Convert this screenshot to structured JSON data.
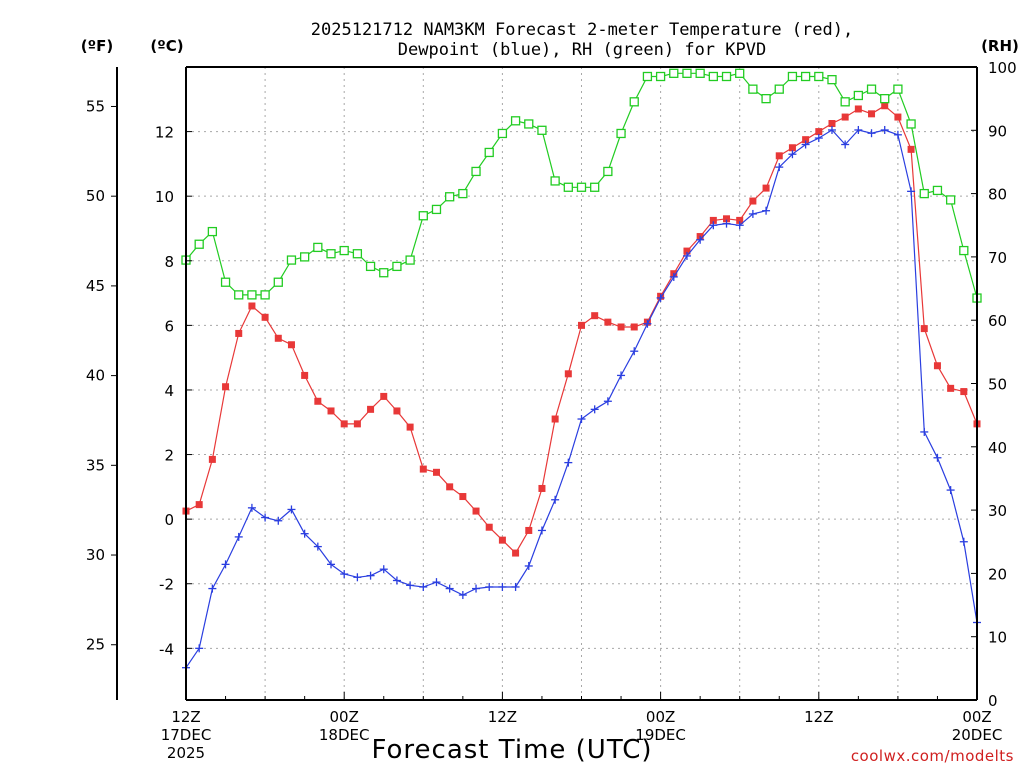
{
  "chart_data": {
    "type": "line",
    "title_line1": "2025121712 NAM3KM Forecast 2-meter Temperature (red),",
    "title_line2": "Dewpoint (blue), RH (green) for KPVD",
    "xlabel": "Forecast Time (UTC)",
    "credit": "coolwx.com/modelts",
    "units": {
      "fahrenheit": "(ºF)",
      "celsius": "(ºC)",
      "rh": "(RH)"
    },
    "x_range_hours": [
      0,
      60
    ],
    "c_range": [
      -5.6,
      14.0
    ],
    "rh_range": [
      0,
      100
    ],
    "f_ticks": [
      "25",
      "30",
      "35",
      "40",
      "45",
      "50",
      "55"
    ],
    "c_ticks": [
      "-4",
      "-2",
      "0",
      "2",
      "4",
      "6",
      "8",
      "10",
      "12"
    ],
    "rh_ticks": [
      "0",
      "10",
      "20",
      "30",
      "40",
      "50",
      "60",
      "70",
      "80",
      "90",
      "100"
    ],
    "x_ticks": [
      {
        "hour": 0,
        "lines": [
          "12Z",
          "17DEC",
          "2025"
        ]
      },
      {
        "hour": 12,
        "lines": [
          "00Z",
          "18DEC"
        ]
      },
      {
        "hour": 24,
        "lines": [
          "12Z"
        ]
      },
      {
        "hour": 36,
        "lines": [
          "00Z",
          "19DEC"
        ]
      },
      {
        "hour": 48,
        "lines": [
          "12Z"
        ]
      },
      {
        "hour": 60,
        "lines": [
          "00Z",
          "20DEC"
        ]
      }
    ],
    "series": [
      {
        "name": "2-meter Temperature",
        "unit": "C",
        "color": "#e83838",
        "marker": "filled-square",
        "values": [
          0.25,
          0.45,
          1.85,
          4.1,
          5.75,
          6.6,
          6.25,
          5.6,
          5.4,
          4.45,
          3.65,
          3.35,
          2.95,
          2.95,
          3.4,
          3.8,
          3.35,
          2.85,
          1.55,
          1.45,
          1.0,
          0.7,
          0.25,
          -0.25,
          -0.65,
          -1.05,
          -0.35,
          0.95,
          3.1,
          4.5,
          6.0,
          6.3,
          6.1,
          5.95,
          5.95,
          6.1,
          6.9,
          7.6,
          8.3,
          8.75,
          9.25,
          9.3,
          9.25,
          9.85,
          10.25,
          11.25,
          11.5,
          11.75,
          12.0,
          12.25,
          12.45,
          12.7,
          12.55,
          12.8,
          12.45,
          11.45,
          5.9,
          4.75,
          4.05,
          3.95,
          2.95
        ]
      },
      {
        "name": "Dewpoint",
        "unit": "C",
        "color": "#2a3ee0",
        "marker": "plus",
        "values": [
          -4.6,
          -4.0,
          -2.15,
          -1.4,
          -0.55,
          0.35,
          0.05,
          -0.05,
          0.3,
          -0.45,
          -0.85,
          -1.4,
          -1.7,
          -1.8,
          -1.75,
          -1.55,
          -1.9,
          -2.05,
          -2.1,
          -1.95,
          -2.15,
          -2.35,
          -2.15,
          -2.1,
          -2.1,
          -2.1,
          -1.45,
          -0.35,
          0.6,
          1.75,
          3.1,
          3.4,
          3.65,
          4.45,
          5.2,
          6.05,
          6.85,
          7.5,
          8.15,
          8.65,
          9.1,
          9.15,
          9.1,
          9.45,
          9.55,
          10.9,
          11.3,
          11.6,
          11.8,
          12.05,
          11.6,
          12.05,
          11.95,
          12.05,
          11.9,
          10.15,
          2.7,
          1.9,
          0.9,
          -0.7,
          -3.2
        ]
      },
      {
        "name": "RH",
        "unit": "%",
        "color": "#22cc22",
        "marker": "open-square",
        "values": [
          69.5,
          72.0,
          74.0,
          66.0,
          64.0,
          64.0,
          64.0,
          66.0,
          69.5,
          70.0,
          71.5,
          70.5,
          71.0,
          70.5,
          68.5,
          67.5,
          68.5,
          69.5,
          76.5,
          77.5,
          79.5,
          80.0,
          83.5,
          86.5,
          89.5,
          91.5,
          91.0,
          90.0,
          82.0,
          81.0,
          81.0,
          81.0,
          83.5,
          89.5,
          94.5,
          98.5,
          98.5,
          99.0,
          99.0,
          99.0,
          98.5,
          98.5,
          99.0,
          96.5,
          95.0,
          96.5,
          98.5,
          98.5,
          98.5,
          98.0,
          94.5,
          95.5,
          96.5,
          95.0,
          96.5,
          91.0,
          80.0,
          80.5,
          79.0,
          71.0,
          63.5
        ]
      }
    ]
  }
}
